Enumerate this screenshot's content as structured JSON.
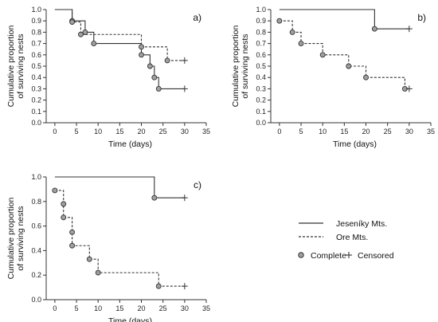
{
  "chart_data": [
    {
      "type": "line",
      "panel_label": "a)",
      "xlabel": "Time (days)",
      "ylabel_line1": "Cumulative proportion",
      "ylabel_line2": "of surviving nests",
      "xlim": [
        -2,
        35
      ],
      "ylim": [
        0,
        1.0
      ],
      "xticks": [
        0,
        5,
        10,
        15,
        20,
        25,
        30,
        35
      ],
      "yticks": [
        "0.0",
        "0.1",
        "0.2",
        "0.3",
        "0.4",
        "0.5",
        "0.6",
        "0.7",
        "0.8",
        "0.9",
        "1.0"
      ],
      "series": [
        {
          "name": "Jeseníky Mts.",
          "line_style": "solid",
          "steps": [
            [
              0,
              1.0
            ],
            [
              4,
              0.9
            ],
            [
              7,
              0.8
            ],
            [
              9,
              0.7
            ],
            [
              20,
              0.6
            ],
            [
              22,
              0.5
            ],
            [
              23,
              0.4
            ],
            [
              24,
              0.3
            ],
            [
              30,
              0.3
            ]
          ],
          "complete": [
            [
              4,
              0.9
            ],
            [
              7,
              0.8
            ],
            [
              9,
              0.7
            ],
            [
              20,
              0.6
            ],
            [
              22,
              0.5
            ],
            [
              23,
              0.4
            ],
            [
              24,
              0.3
            ]
          ],
          "censored": [
            [
              30,
              0.3
            ]
          ]
        },
        {
          "name": "Ore Mts.",
          "line_style": "dashed",
          "steps": [
            [
              0,
              1.0
            ],
            [
              4,
              0.89
            ],
            [
              6,
              0.78
            ],
            [
              20,
              0.67
            ],
            [
              26,
              0.55
            ],
            [
              30,
              0.55
            ]
          ],
          "complete": [
            [
              4,
              0.89
            ],
            [
              6,
              0.78
            ],
            [
              20,
              0.67
            ],
            [
              26,
              0.55
            ]
          ],
          "censored": [
            [
              30,
              0.55
            ]
          ]
        }
      ]
    },
    {
      "type": "line",
      "panel_label": "b)",
      "xlabel": "Time (days)",
      "ylabel_line1": "Cumulative proportion",
      "ylabel_line2": "of surviving nests",
      "xlim": [
        -2,
        35
      ],
      "ylim": [
        0,
        1.0
      ],
      "xticks": [
        0,
        5,
        10,
        15,
        20,
        25,
        30,
        35
      ],
      "yticks": [
        "0.0",
        "0.1",
        "0.2",
        "0.3",
        "0.4",
        "0.5",
        "0.6",
        "0.7",
        "0.8",
        "0.9",
        "1.0"
      ],
      "series": [
        {
          "name": "Jeseníky Mts.",
          "line_style": "solid",
          "steps": [
            [
              0,
              1.0
            ],
            [
              22,
              0.83
            ],
            [
              30,
              0.83
            ]
          ],
          "complete": [
            [
              22,
              0.83
            ]
          ],
          "censored": [
            [
              30,
              0.83
            ]
          ]
        },
        {
          "name": "Ore Mts.",
          "line_style": "dashed",
          "steps": [
            [
              0,
              0.9
            ],
            [
              3,
              0.8
            ],
            [
              5,
              0.7
            ],
            [
              10,
              0.6
            ],
            [
              16,
              0.5
            ],
            [
              20,
              0.4
            ],
            [
              29,
              0.3
            ],
            [
              30,
              0.3
            ]
          ],
          "complete": [
            [
              0,
              0.9
            ],
            [
              3,
              0.8
            ],
            [
              5,
              0.7
            ],
            [
              10,
              0.6
            ],
            [
              16,
              0.5
            ],
            [
              20,
              0.4
            ],
            [
              29,
              0.3
            ]
          ],
          "censored": [
            [
              30,
              0.3
            ]
          ]
        }
      ]
    },
    {
      "type": "line",
      "panel_label": "c)",
      "xlabel": "Time (days)",
      "ylabel_line1": "Cumulative proportion",
      "ylabel_line2": "of surviving nests",
      "xlim": [
        -2,
        35
      ],
      "ylim": [
        0,
        1.0
      ],
      "xticks": [
        0,
        5,
        10,
        15,
        20,
        25,
        30,
        35
      ],
      "yticks": [
        "0.0",
        "0.2",
        "0.4",
        "0.6",
        "0.8",
        "1.0"
      ],
      "series": [
        {
          "name": "Jeseníky Mts.",
          "line_style": "solid",
          "steps": [
            [
              0,
              1.0
            ],
            [
              23,
              0.83
            ],
            [
              30,
              0.83
            ]
          ],
          "complete": [
            [
              23,
              0.83
            ]
          ],
          "censored": [
            [
              30,
              0.83
            ]
          ]
        },
        {
          "name": "Ore Mts.",
          "line_style": "dashed",
          "steps": [
            [
              0,
              0.89
            ],
            [
              2,
              0.78
            ],
            [
              2,
              0.67
            ],
            [
              4,
              0.55
            ],
            [
              4,
              0.44
            ],
            [
              8,
              0.33
            ],
            [
              10,
              0.22
            ],
            [
              24,
              0.11
            ],
            [
              30,
              0.11
            ]
          ],
          "complete": [
            [
              0,
              0.89
            ],
            [
              2,
              0.78
            ],
            [
              2,
              0.67
            ],
            [
              4,
              0.55
            ],
            [
              4,
              0.44
            ],
            [
              8,
              0.33
            ],
            [
              10,
              0.22
            ],
            [
              24,
              0.11
            ]
          ],
          "censored": [
            [
              30,
              0.11
            ]
          ]
        }
      ]
    }
  ],
  "legend": {
    "jeseniky_label": "Jeseníky Mts.",
    "ore_label": "Ore Mts.",
    "complete_label": "Complete",
    "censored_label": "Censored"
  },
  "colors": {
    "line": "#333333",
    "marker_fill": "#a0a0a0"
  }
}
